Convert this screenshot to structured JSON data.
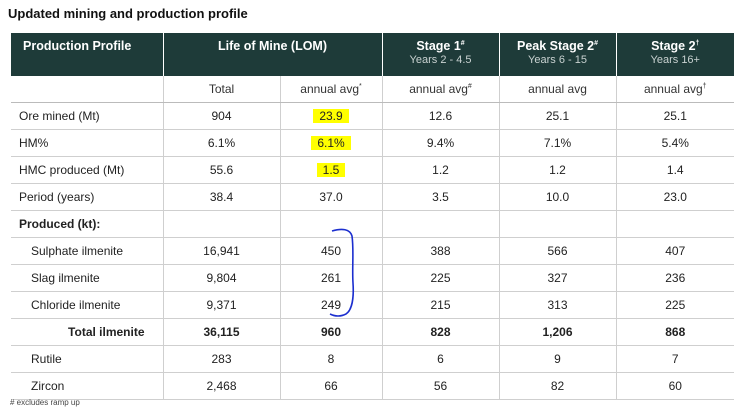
{
  "title": "Updated mining and production profile",
  "header": {
    "col0": "Production Profile",
    "col1": "Life of Mine (LOM)",
    "col2": "Stage 1",
    "col2_mark": "#",
    "col2_sub": "Years 2 - 4.5",
    "col3": "Peak Stage 2",
    "col3_mark": "#",
    "col3_sub": "Years 6 - 15",
    "col4": "Stage 2",
    "col4_mark": "†",
    "col4_sub": "Years 16+"
  },
  "subheader": {
    "total": "Total",
    "lom_avg": "annual avg",
    "lom_avg_mark": "*",
    "s1_avg": "annual avg",
    "s1_avg_mark": "#",
    "peak_avg": "annual avg",
    "s2_avg": "annual avg",
    "s2_avg_mark": "†"
  },
  "rows": [
    {
      "label": "Ore mined (Mt)",
      "total": "904",
      "lom_avg": "23.9",
      "s1": "12.6",
      "peak": "25.1",
      "s2": "25.1"
    },
    {
      "label": "HM%",
      "total": "6.1%",
      "lom_avg": "6.1%",
      "s1": "9.4%",
      "peak": "7.1%",
      "s2": "5.4%"
    },
    {
      "label": "HMC produced (Mt)",
      "total": "55.6",
      "lom_avg": "1.5",
      "s1": "1.2",
      "peak": "1.2",
      "s2": "1.4"
    },
    {
      "label": "Period (years)",
      "total": "38.4",
      "lom_avg": "37.0",
      "s1": "3.5",
      "peak": "10.0",
      "s2": "23.0"
    }
  ],
  "section_label": "Produced (kt):",
  "produced_rows": [
    {
      "label": "Sulphate ilmenite",
      "total": "16,941",
      "lom_avg": "450",
      "s1": "388",
      "peak": "566",
      "s2": "407"
    },
    {
      "label": "Slag ilmenite",
      "total": "9,804",
      "lom_avg": "261",
      "s1": "225",
      "peak": "327",
      "s2": "236"
    },
    {
      "label": "Chloride ilmenite",
      "total": "9,371",
      "lom_avg": "249",
      "s1": "215",
      "peak": "313",
      "s2": "225"
    }
  ],
  "total_row": {
    "label": "Total ilmenite",
    "total": "36,115",
    "lom_avg": "960",
    "s1": "828",
    "peak": "1,206",
    "s2": "868"
  },
  "other_rows": [
    {
      "label": "Rutile",
      "total": "283",
      "lom_avg": "8",
      "s1": "6",
      "peak": "9",
      "s2": "7"
    },
    {
      "label": "Zircon",
      "total": "2,468",
      "lom_avg": "66",
      "s1": "56",
      "peak": "82",
      "s2": "60"
    }
  ],
  "footnote": "# excludes ramp up",
  "colors": {
    "header_bg": "#1e3b39",
    "highlight": "#ffff00",
    "pen": "#1c2fcf"
  }
}
